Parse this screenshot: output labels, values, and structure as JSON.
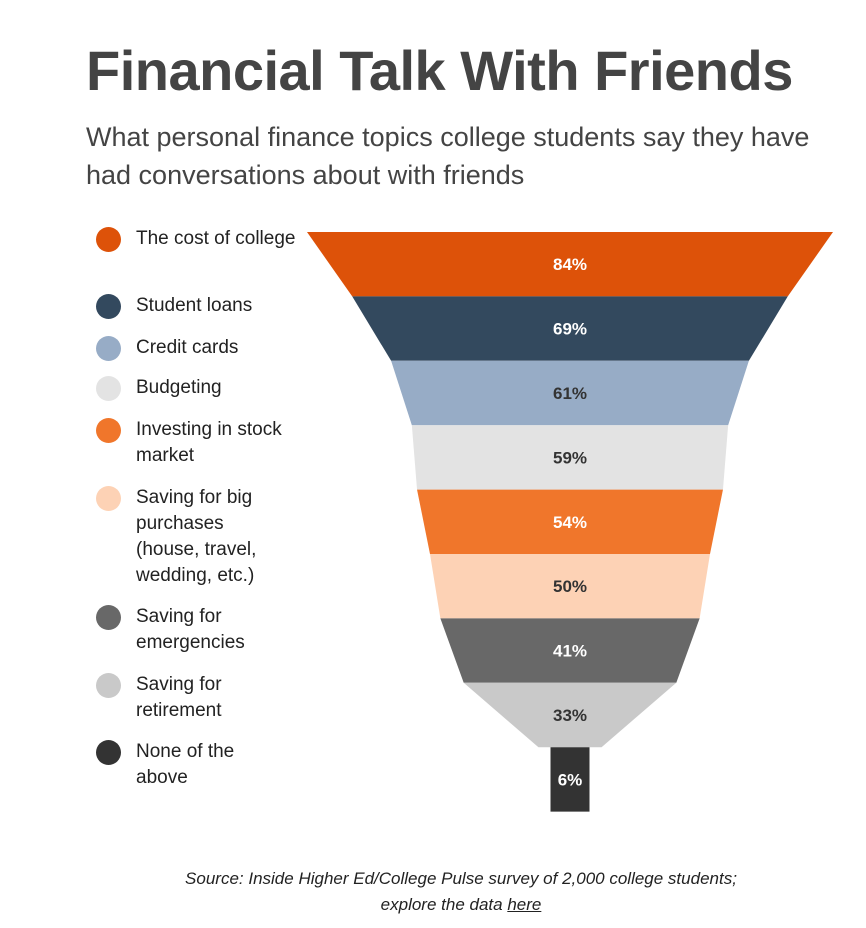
{
  "title": "Financial Talk With Friends",
  "subtitle": "What personal finance topics college students say they have had conversations about with friends",
  "chart_data": {
    "type": "funnel",
    "title": "Financial Talk With Friends",
    "subtitle": "What personal finance topics college students say they have had conversations about with friends",
    "categories": [
      "The cost of college",
      "Student loans",
      "Credit cards",
      "Budgeting",
      "Investing in stock market",
      "Saving for big purchases (house, travel, wedding, etc.)",
      "Saving for emergencies",
      "Saving for retirement",
      "None of the above"
    ],
    "values": [
      84,
      69,
      61,
      59,
      54,
      50,
      41,
      33,
      6
    ],
    "labels": [
      "84%",
      "69%",
      "61%",
      "59%",
      "54%",
      "50%",
      "41%",
      "33%",
      "6%"
    ],
    "unit": "%",
    "colors": [
      "#dd5209",
      "#33495e",
      "#97acc6",
      "#e3e3e3",
      "#f0762b",
      "#fdd2b5",
      "#686868",
      "#c9c9c9",
      "#333333"
    ],
    "label_colors": [
      "#ffffff",
      "#ffffff",
      "#333333",
      "#333333",
      "#ffffff",
      "#333333",
      "#ffffff",
      "#333333",
      "#ffffff"
    ],
    "legend_position": "left"
  },
  "legend": [
    "The cost of college",
    "Student loans",
    "Credit cards",
    "Budgeting",
    "Investing in stock market",
    "Saving for big purchases (house, travel, wedding, etc.)",
    "Saving for emergencies",
    "Saving for retirement",
    "None of the above"
  ],
  "footer": {
    "source_text": "Source: Inside Higher Ed/College Pulse survey of 2,000 college students;",
    "explore_text": "explore the data",
    "link_text": "here"
  }
}
